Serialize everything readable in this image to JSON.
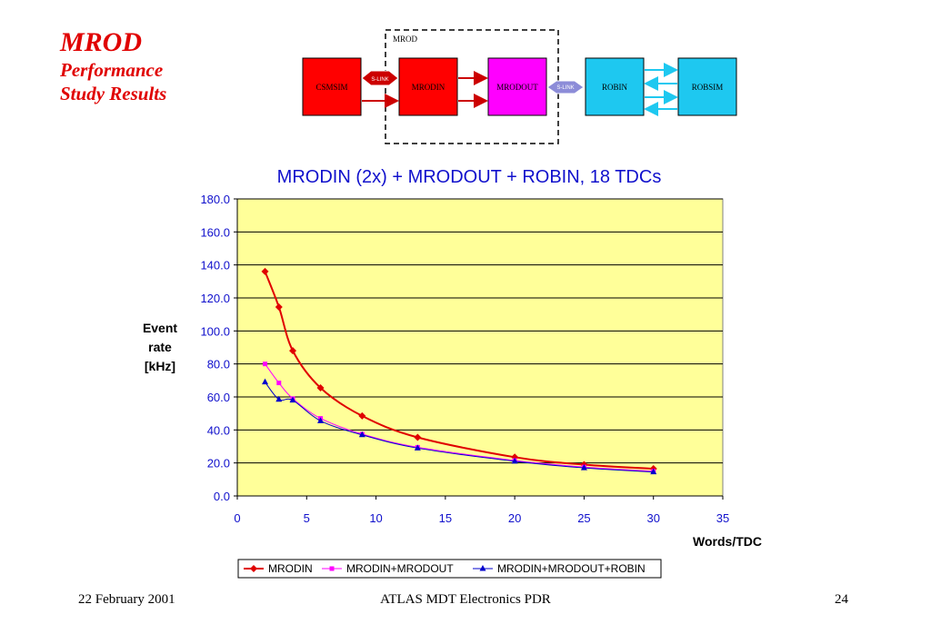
{
  "slide": {
    "title": "MROD",
    "subtitle_line1": "Performance",
    "subtitle_line2": "Study Results",
    "footer_left": "22 February 2001",
    "footer_center": "ATLAS MDT Electronics PDR",
    "footer_right": "24"
  },
  "diagram": {
    "group_label": "MROD",
    "boxes": [
      "CSMSIM",
      "MRODIN",
      "MRODOUT",
      "ROBIN",
      "ROBSIM"
    ],
    "link1_label": "S-LINK",
    "link2_label": "S-LINK",
    "colors": {
      "red": "#ff0000",
      "magenta": "#ff00ff",
      "cyan": "#1ec8f0",
      "link1": "#cc0000",
      "link2": "#8c8cd8"
    }
  },
  "chart_data": {
    "type": "line",
    "title": "MRODIN (2x) + MRODOUT + ROBIN, 18 TDCs",
    "xlabel": "Words/TDC",
    "ylabel_lines": [
      "Event",
      "rate",
      "[kHz]"
    ],
    "xlim": [
      0,
      35
    ],
    "ylim": [
      0,
      180
    ],
    "x_ticks": [
      "0",
      "5",
      "10",
      "15",
      "20",
      "25",
      "30",
      "35"
    ],
    "y_ticks": [
      "0.0",
      "20.0",
      "40.0",
      "60.0",
      "80.0",
      "100.0",
      "120.0",
      "140.0",
      "160.0",
      "180.0"
    ],
    "grid": "horizontal",
    "legend_position": "bottom",
    "plot_background": "#ffff99",
    "series": [
      {
        "name": "MRODIN",
        "color": "#e00000",
        "marker": "diamond",
        "x": [
          2,
          3,
          4,
          6,
          9,
          13,
          20,
          25,
          30
        ],
        "y": [
          136.0,
          114.5,
          88.0,
          65.5,
          48.5,
          35.5,
          23.5,
          19.0,
          16.5
        ]
      },
      {
        "name": "MRODIN+MRODOUT",
        "color": "#ff00ff",
        "marker": "square",
        "x": [
          2,
          3,
          4,
          6,
          9,
          13,
          20,
          25,
          30
        ],
        "y": [
          80.0,
          68.5,
          59.0,
          47.0,
          37.5,
          29.5,
          21.5,
          17.5,
          15.0
        ]
      },
      {
        "name": "MRODIN+MRODOUT+ROBIN",
        "color": "#0000cc",
        "marker": "triangle",
        "x": [
          2,
          3,
          4,
          6,
          9,
          13,
          20,
          25,
          30
        ],
        "y": [
          69.0,
          58.5,
          58.0,
          45.5,
          37.0,
          29.0,
          21.0,
          17.0,
          14.5
        ]
      }
    ]
  }
}
